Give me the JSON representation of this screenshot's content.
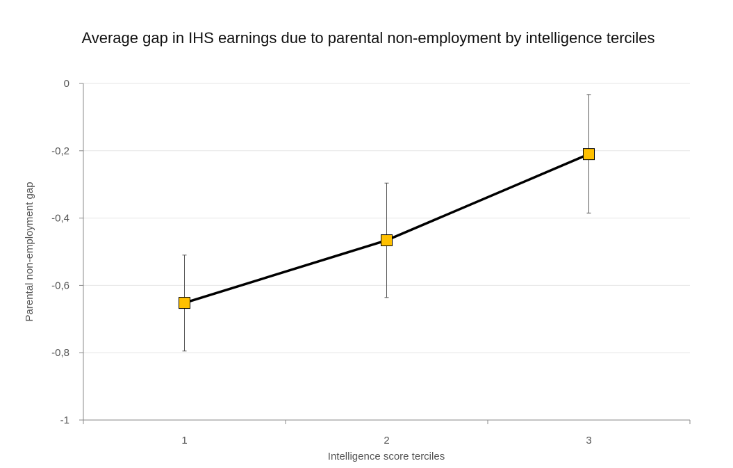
{
  "chart_data": {
    "type": "line",
    "title": "Average gap in IHS earnings due to parental non-employment by intelligence terciles",
    "xlabel": "Intelligence score terciles",
    "ylabel": "Parental non-employment gap",
    "categories": [
      "1",
      "2",
      "3"
    ],
    "y_ticks": [
      "0",
      "-0,2",
      "-0,4",
      "-0,6",
      "-0,8",
      "-1"
    ],
    "y_tick_values": [
      0,
      -0.2,
      -0.4,
      -0.6,
      -0.8,
      -1
    ],
    "ylim": [
      -1,
      0
    ],
    "grid": true,
    "series": [
      {
        "values": [
          -0.652,
          -0.466,
          -0.21
        ],
        "error_low": [
          -0.795,
          -0.636,
          -0.385
        ],
        "error_high": [
          -0.51,
          -0.296,
          -0.033
        ],
        "line_color": "#000000",
        "marker": "square",
        "marker_color": "#FFC000"
      }
    ]
  }
}
